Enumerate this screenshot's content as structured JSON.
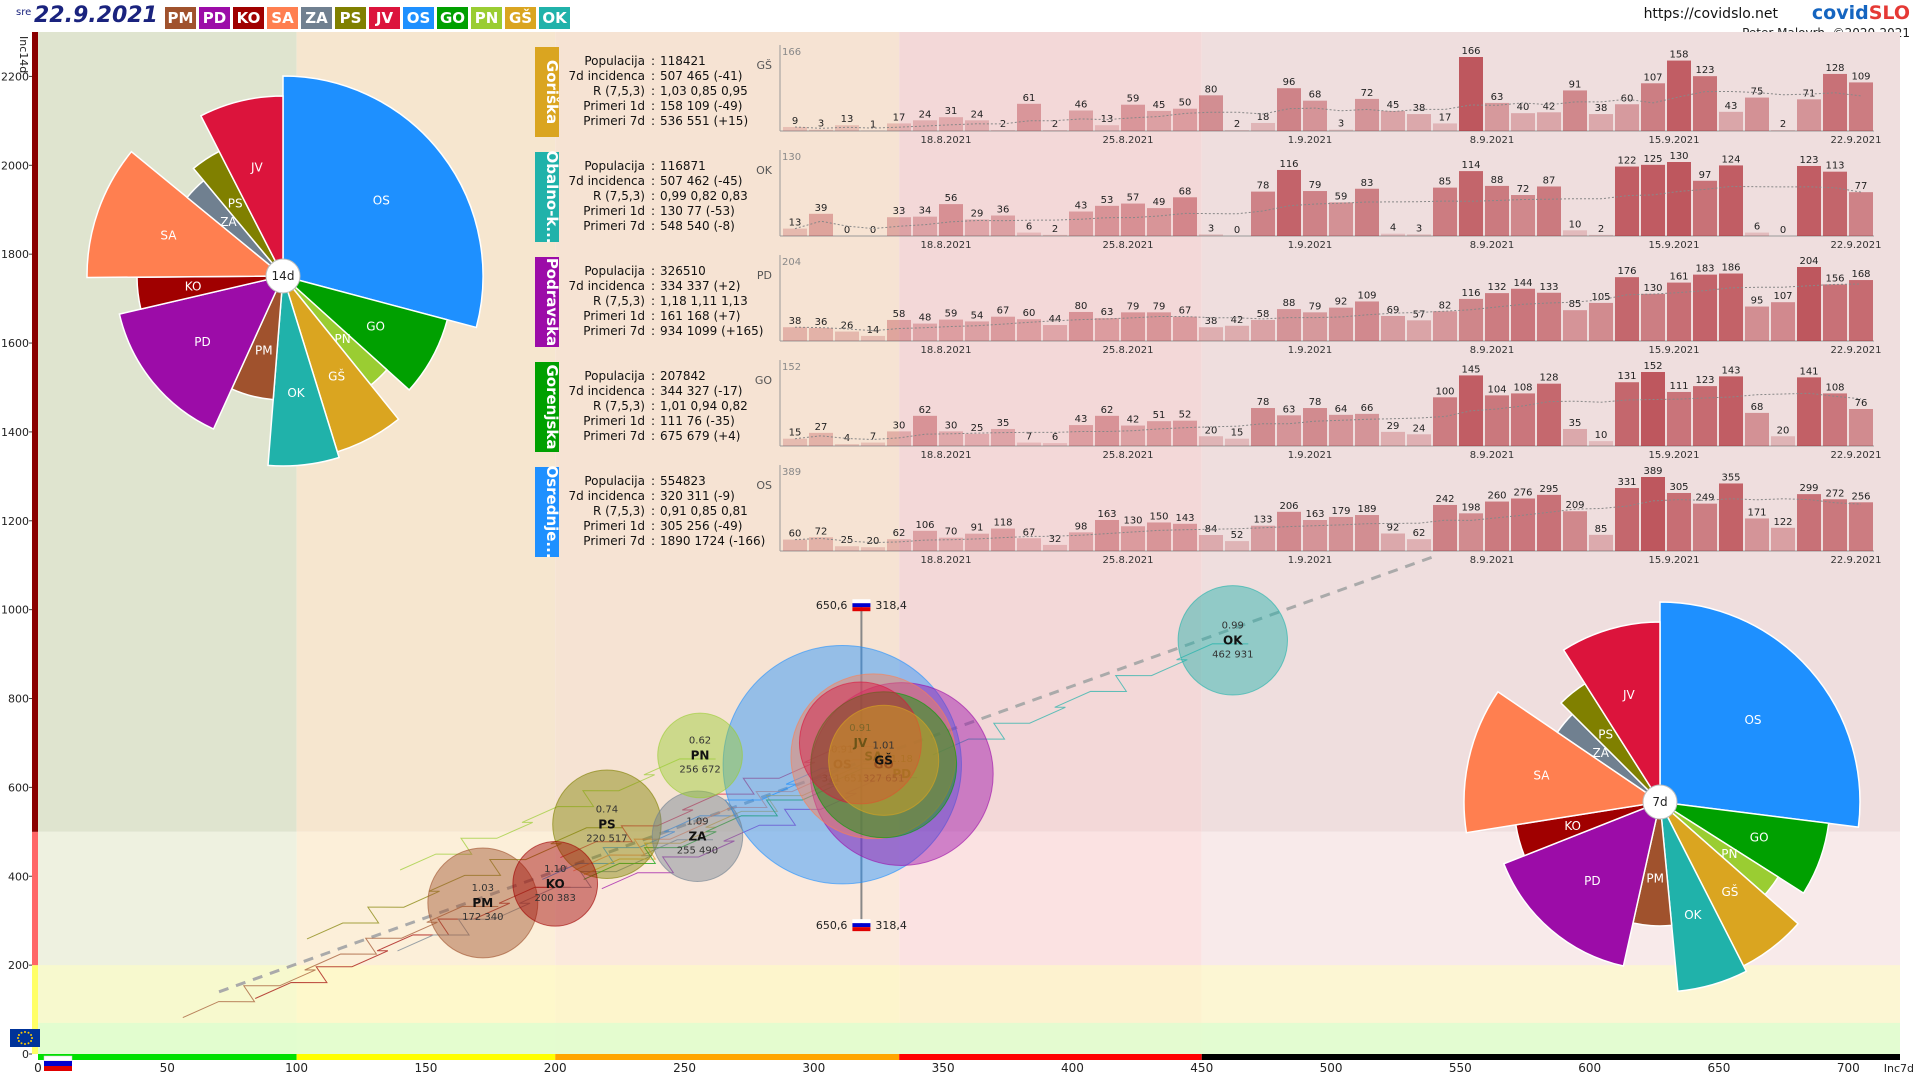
{
  "header": {
    "weekday": "sre",
    "date": "22.9.2021",
    "url": "https://covidslo.net",
    "brand_part1": "covid",
    "brand_part2": "SLO",
    "credit": "Peter Malovrh, ©2020-2021"
  },
  "regions": [
    {
      "code": "PM",
      "color": "#a0522d"
    },
    {
      "code": "PD",
      "color": "#9c0ca8"
    },
    {
      "code": "KO",
      "color": "#a00000"
    },
    {
      "code": "SA",
      "color": "#ff7f50"
    },
    {
      "code": "ZA",
      "color": "#708090"
    },
    {
      "code": "PS",
      "color": "#808000"
    },
    {
      "code": "JV",
      "color": "#dc143c"
    },
    {
      "code": "OS",
      "color": "#1e90ff"
    },
    {
      "code": "GO",
      "color": "#00a000"
    },
    {
      "code": "PN",
      "color": "#9acd32"
    },
    {
      "code": "GŠ",
      "color": "#daa520"
    },
    {
      "code": "OK",
      "color": "#20b2aa"
    }
  ],
  "chart_data": [
    {
      "type": "scatter",
      "title": "Incidenca 14d vs 7d po regijah",
      "xlabel": "Inc7d",
      "ylabel": "Inc14d",
      "xlim": [
        0,
        720
      ],
      "ylim": [
        0,
        2300
      ],
      "x_ticks": [
        0,
        50,
        100,
        150,
        200,
        250,
        300,
        350,
        400,
        450,
        500,
        550,
        600,
        650,
        700
      ],
      "y_ticks": [
        0,
        200,
        400,
        600,
        800,
        1000,
        1200,
        1400,
        1600,
        1800,
        2000,
        2200
      ],
      "points": [
        {
          "code": "PM",
          "x": 172,
          "y": 340,
          "r_label": "1.03",
          "value_label": "172 340",
          "color": "#a0522d",
          "pop": 118000
        },
        {
          "code": "KO",
          "x": 200,
          "y": 383,
          "r_label": "1.10",
          "value_label": "200 383",
          "color": "#a00000",
          "pop": 70000
        },
        {
          "code": "PS",
          "x": 220,
          "y": 517,
          "r_label": "0.74",
          "value_label": "220 517",
          "color": "#808000",
          "pop": 115000
        },
        {
          "code": "ZA",
          "x": 255,
          "y": 490,
          "r_label": "1.09",
          "value_label": "255 490",
          "color": "#708090",
          "pop": 80000
        },
        {
          "code": "PN",
          "x": 256,
          "y": 672,
          "r_label": "0.62",
          "value_label": "256 672",
          "color": "#9acd32",
          "pop": 70000
        },
        {
          "code": "OS",
          "x": 311,
          "y": 651,
          "r_label": "0.91",
          "value_label": "311 651",
          "color": "#1e90ff",
          "pop": 554823
        },
        {
          "code": "JV",
          "x": 318,
          "y": 700,
          "r_label": "0.91",
          "value_label": "",
          "color": "#dc143c",
          "pop": 145000
        },
        {
          "code": "PD",
          "x": 334,
          "y": 630,
          "r_label": "1.18",
          "value_label": "",
          "color": "#9c0ca8",
          "pop": 326510
        },
        {
          "code": "GŠ",
          "x": 327,
          "y": 661,
          "r_label": "1.01",
          "value_label": "",
          "color": "#daa520",
          "pop": 118421
        },
        {
          "code": "GO",
          "x": 327,
          "y": 651,
          "r_label": "",
          "value_label": "327 651",
          "color": "#00a000",
          "pop": 207842
        },
        {
          "code": "SA",
          "x": 323,
          "y": 670,
          "r_label": "",
          "value_label": "",
          "color": "#ff7f50",
          "pop": 265000
        },
        {
          "code": "OK",
          "x": 462,
          "y": 931,
          "r_label": "0.99",
          "value_label": "462 931",
          "color": "#20b2aa",
          "pop": 116871
        }
      ],
      "slovenia_marker": {
        "label_left": "650,6",
        "label_right": "318,4",
        "x": 318.4,
        "y_top": 1010,
        "y_bottom": 290
      },
      "trend_line": {
        "x1": 70,
        "y1": 140,
        "x2": 540,
        "y2": 1120
      },
      "left_scale": [
        {
          "from": 0,
          "to": 200,
          "color": "#ffff66"
        },
        {
          "from": 200,
          "to": 500,
          "color": "#ff6666"
        },
        {
          "from": 500,
          "to": 2300,
          "color": "#8b0000"
        }
      ],
      "bottom_scale": [
        {
          "from": 0,
          "to": 100,
          "color": "#00e000"
        },
        {
          "from": 100,
          "to": 200,
          "color": "#ffff00"
        },
        {
          "from": 200,
          "to": 333,
          "color": "#ffa500"
        },
        {
          "from": 333,
          "to": 450,
          "color": "#ff0000"
        },
        {
          "from": 450,
          "to": 720,
          "color": "#000000"
        }
      ]
    },
    {
      "type": "pie",
      "title": "14d",
      "center_label": "14d",
      "slices": [
        {
          "code": "OS",
          "value": 29,
          "radius": 1.0,
          "color": "#1e90ff"
        },
        {
          "code": "GO",
          "value": 7.5,
          "radius": 0.85,
          "color": "#00a000"
        },
        {
          "code": "PN",
          "value": 2.5,
          "radius": 0.7,
          "color": "#9acd32"
        },
        {
          "code": "GŠ",
          "value": 6,
          "radius": 0.92,
          "color": "#daa520"
        },
        {
          "code": "OK",
          "value": 6,
          "radius": 0.95,
          "color": "#20b2aa"
        },
        {
          "code": "PM",
          "value": 5.5,
          "radius": 0.62,
          "color": "#a0522d"
        },
        {
          "code": "PD",
          "value": 14.5,
          "radius": 0.84,
          "color": "#9c0ca8"
        },
        {
          "code": "KO",
          "value": 3.5,
          "radius": 0.73,
          "color": "#a00000"
        },
        {
          "code": "SA",
          "value": 11,
          "radius": 0.98,
          "color": "#ff7f50"
        },
        {
          "code": "ZA",
          "value": 3,
          "radius": 0.62,
          "color": "#708090"
        },
        {
          "code": "PS",
          "value": 3.5,
          "radius": 0.7,
          "color": "#808000"
        },
        {
          "code": "JV",
          "value": 7.5,
          "radius": 0.9,
          "color": "#dc143c"
        }
      ]
    },
    {
      "type": "pie",
      "title": "7d",
      "center_label": "7d",
      "slices": [
        {
          "code": "OS",
          "value": 27,
          "radius": 1.0,
          "color": "#1e90ff"
        },
        {
          "code": "GO",
          "value": 7,
          "radius": 0.85,
          "color": "#00a000"
        },
        {
          "code": "PN",
          "value": 2.5,
          "radius": 0.7,
          "color": "#9acd32"
        },
        {
          "code": "GŠ",
          "value": 6,
          "radius": 0.92,
          "color": "#daa520"
        },
        {
          "code": "OK",
          "value": 6,
          "radius": 0.95,
          "color": "#20b2aa"
        },
        {
          "code": "PM",
          "value": 5,
          "radius": 0.62,
          "color": "#a0522d"
        },
        {
          "code": "PD",
          "value": 15.5,
          "radius": 0.84,
          "color": "#9c0ca8"
        },
        {
          "code": "KO",
          "value": 3.5,
          "radius": 0.73,
          "color": "#a00000"
        },
        {
          "code": "SA",
          "value": 12,
          "radius": 0.98,
          "color": "#ff7f50"
        },
        {
          "code": "ZA",
          "value": 3,
          "radius": 0.62,
          "color": "#708090"
        },
        {
          "code": "PS",
          "value": 3.5,
          "radius": 0.7,
          "color": "#808000"
        },
        {
          "code": "JV",
          "value": 9,
          "radius": 0.9,
          "color": "#dc143c"
        }
      ]
    },
    {
      "type": "bar",
      "panel": "region-daily",
      "x_dates": [
        "18.8.2021",
        "25.8.2021",
        "1.9.2021",
        "8.9.2021",
        "15.9.2021",
        "22.9.2021"
      ],
      "regions": [
        {
          "name": "Goriška",
          "code": "GŠ",
          "color": "#daa520",
          "ymax": "166",
          "max_value": 166,
          "stats": {
            "populacija": "118421",
            "incidenca": "507 465 (-41)",
            "r": "1,03 0,85 0,95",
            "primeri_1d": "158 109 (-49)",
            "primeri_7d": "536 551 (+15)"
          },
          "values": [
            9,
            3,
            13,
            1,
            17,
            24,
            31,
            24,
            2,
            61,
            2,
            46,
            13,
            59,
            45,
            50,
            80,
            2,
            18,
            96,
            68,
            3,
            72,
            45,
            38,
            17,
            166,
            63,
            40,
            42,
            91,
            38,
            60,
            107,
            158,
            123,
            43,
            75,
            2,
            71,
            128,
            109
          ]
        },
        {
          "name": "Obalno-k...",
          "code": "OK",
          "color": "#20b2aa",
          "ymax": "130",
          "max_value": 130,
          "stats": {
            "populacija": "116871",
            "incidenca": "507 462 (-45)",
            "r": "0,99 0,82 0,83",
            "primeri_1d": "130 77 (-53)",
            "primeri_7d": "548 540 (-8)"
          },
          "values": [
            13,
            39,
            0,
            0,
            33,
            34,
            56,
            29,
            36,
            6,
            2,
            43,
            53,
            57,
            49,
            68,
            3,
            0,
            78,
            116,
            79,
            59,
            83,
            4,
            3,
            85,
            114,
            88,
            72,
            87,
            10,
            2,
            122,
            125,
            130,
            97,
            124,
            6,
            0,
            123,
            113,
            77
          ]
        },
        {
          "name": "Podravska",
          "code": "PD",
          "color": "#9c0ca8",
          "ymax": "204",
          "max_value": 204,
          "stats": {
            "populacija": "326510",
            "incidenca": "334 337 (+2)",
            "r": "1,18 1,11 1,13",
            "primeri_1d": "161 168 (+7)",
            "primeri_7d": "934 1099 (+165)"
          },
          "values": [
            38,
            36,
            26,
            14,
            58,
            48,
            59,
            54,
            67,
            60,
            44,
            80,
            63,
            79,
            79,
            67,
            38,
            42,
            58,
            88,
            79,
            92,
            109,
            69,
            57,
            82,
            116,
            132,
            144,
            133,
            85,
            105,
            176,
            130,
            161,
            183,
            186,
            95,
            107,
            204,
            156,
            168
          ]
        },
        {
          "name": "Gorenjska",
          "code": "GO",
          "color": "#00a000",
          "ymax": "152",
          "max_value": 152,
          "stats": {
            "populacija": "207842",
            "incidenca": "344 327 (-17)",
            "r": "1,01 0,94 0,82",
            "primeri_1d": "111 76 (-35)",
            "primeri_7d": "675 679 (+4)"
          },
          "values": [
            15,
            27,
            4,
            7,
            30,
            62,
            30,
            25,
            35,
            7,
            6,
            43,
            62,
            42,
            51,
            52,
            20,
            15,
            78,
            63,
            78,
            64,
            66,
            29,
            24,
            100,
            145,
            104,
            108,
            128,
            35,
            10,
            131,
            152,
            111,
            123,
            143,
            68,
            20,
            141,
            108,
            76
          ]
        },
        {
          "name": "Osrednje...",
          "code": "OS",
          "color": "#1e90ff",
          "ymax": "389",
          "max_value": 389,
          "stats": {
            "populacija": "554823",
            "incidenca": "320 311 (-9)",
            "r": "0,91 0,85 0,81",
            "primeri_1d": "305 256 (-49)",
            "primeri_7d": "1890 1724 (-166)"
          },
          "values": [
            60,
            72,
            25,
            20,
            62,
            106,
            70,
            91,
            118,
            67,
            32,
            98,
            163,
            130,
            150,
            143,
            84,
            52,
            133,
            206,
            163,
            179,
            189,
            92,
            62,
            242,
            198,
            260,
            276,
            295,
            209,
            85,
            331,
            389,
            305,
            249,
            355,
            171,
            122,
            299,
            272,
            256
          ]
        }
      ]
    }
  ],
  "stat_labels": {
    "populacija": "Populacija",
    "incidenca": "7d incidenca",
    "r": "R (7,5,3)",
    "primeri_1d": "Primeri 1d",
    "primeri_7d": "Primeri 7d"
  }
}
